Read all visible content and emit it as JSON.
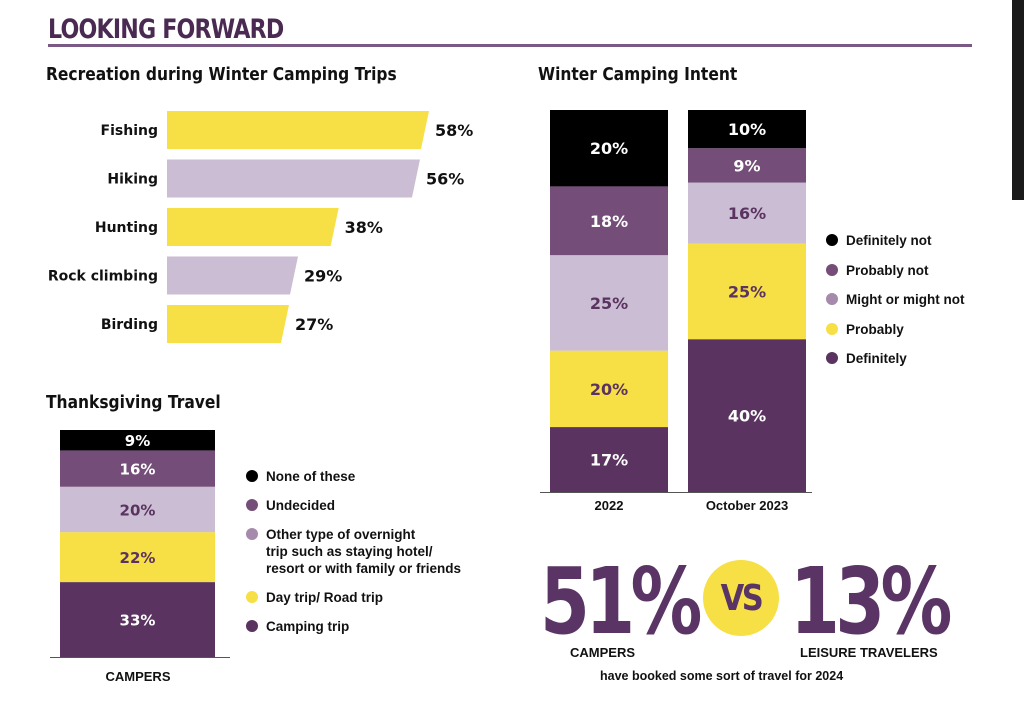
{
  "section_title": "LOOKING FORWARD",
  "recreation": {
    "title": "Recreation during Winter Camping Trips",
    "chart_data": {
      "type": "bar",
      "orientation": "horizontal",
      "title": "Recreation during Winter Camping Trips",
      "categories": [
        "Fishing",
        "Hiking",
        "Hunting",
        "Rock climbing",
        "Birding"
      ],
      "values": [
        58,
        56,
        38,
        29,
        27
      ],
      "labels": [
        "58%",
        "56%",
        "38%",
        "29%",
        "27%"
      ],
      "colors": [
        "#f7df46",
        "#cbbdd3",
        "#f7df46",
        "#cbbdd3",
        "#f7df46"
      ],
      "xlim": [
        0,
        58
      ]
    }
  },
  "intent": {
    "title": "Winter Camping Intent",
    "chart_data": {
      "type": "bar",
      "stacked": true,
      "title": "Winter Camping Intent",
      "categories": [
        "2022",
        "October 2023"
      ],
      "series": [
        {
          "name": "Definitely",
          "color": "#5a3360",
          "values": [
            17,
            40
          ],
          "labels": [
            "17%",
            "40%"
          ],
          "text_color": "#ffffff"
        },
        {
          "name": "Probably",
          "color": "#f7df46",
          "values": [
            20,
            25
          ],
          "labels": [
            "20%",
            "25%"
          ],
          "text_color": "#5a3360"
        },
        {
          "name": "Might or might not",
          "color": "#cbbdd3",
          "values": [
            25,
            16
          ],
          "labels": [
            "25%",
            "16%"
          ],
          "text_color": "#5a3360"
        },
        {
          "name": "Probably not",
          "color": "#744d78",
          "values": [
            18,
            9
          ],
          "labels": [
            "18%",
            "9%"
          ],
          "text_color": "#ffffff"
        },
        {
          "name": "Definitely not",
          "color": "#000000",
          "values": [
            20,
            10
          ],
          "labels": [
            "20%",
            "10%"
          ],
          "text_color": "#ffffff"
        }
      ],
      "legend": [
        {
          "label": "Definitely not",
          "color": "#000000"
        },
        {
          "label": "Probably not",
          "color": "#744d78"
        },
        {
          "label": "Might or might not",
          "color": "#a58aac"
        },
        {
          "label": "Probably",
          "color": "#f7df46"
        },
        {
          "label": "Definitely",
          "color": "#5a3360"
        }
      ],
      "legend_position": "right"
    }
  },
  "thanksgiving": {
    "title": "Thanksgiving Travel",
    "chart_data": {
      "type": "bar",
      "stacked": true,
      "title": "Thanksgiving Travel",
      "categories": [
        "CAMPERS"
      ],
      "series": [
        {
          "name": "Camping trip",
          "color": "#5a3360",
          "values": [
            33
          ],
          "labels": [
            "33%"
          ],
          "text_color": "#ffffff"
        },
        {
          "name": "Day trip/ Road trip",
          "color": "#f7df46",
          "values": [
            22
          ],
          "labels": [
            "22%"
          ],
          "text_color": "#5a3360"
        },
        {
          "name": "Other type of overnight trip such as staying hotel/ resort or with family or friends",
          "color": "#cbbdd3",
          "values": [
            20
          ],
          "labels": [
            "20%"
          ],
          "text_color": "#5a3360"
        },
        {
          "name": "Undecided",
          "color": "#744d78",
          "values": [
            16
          ],
          "labels": [
            "16%"
          ],
          "text_color": "#ffffff"
        },
        {
          "name": "None of these",
          "color": "#000000",
          "values": [
            9
          ],
          "labels": [
            "9%"
          ],
          "text_color": "#ffffff"
        }
      ],
      "legend": [
        {
          "lines": [
            "None of these"
          ],
          "color": "#000000"
        },
        {
          "lines": [
            "Undecided"
          ],
          "color": "#744d78"
        },
        {
          "lines": [
            "Other type of overnight",
            "trip such as staying hotel/",
            "resort or with family or friends"
          ],
          "color": "#a58aac"
        },
        {
          "lines": [
            "Day trip/ Road trip"
          ],
          "color": "#f7df46"
        },
        {
          "lines": [
            "Camping trip"
          ],
          "color": "#5a3360"
        }
      ],
      "legend_position": "right"
    }
  },
  "comparison": {
    "left_value": "51%",
    "left_label": "CAMPERS",
    "vs": "VS",
    "right_value": "13%",
    "right_label": "LEISURE TRAVELERS",
    "caption": "have booked some sort of travel for 2024"
  }
}
